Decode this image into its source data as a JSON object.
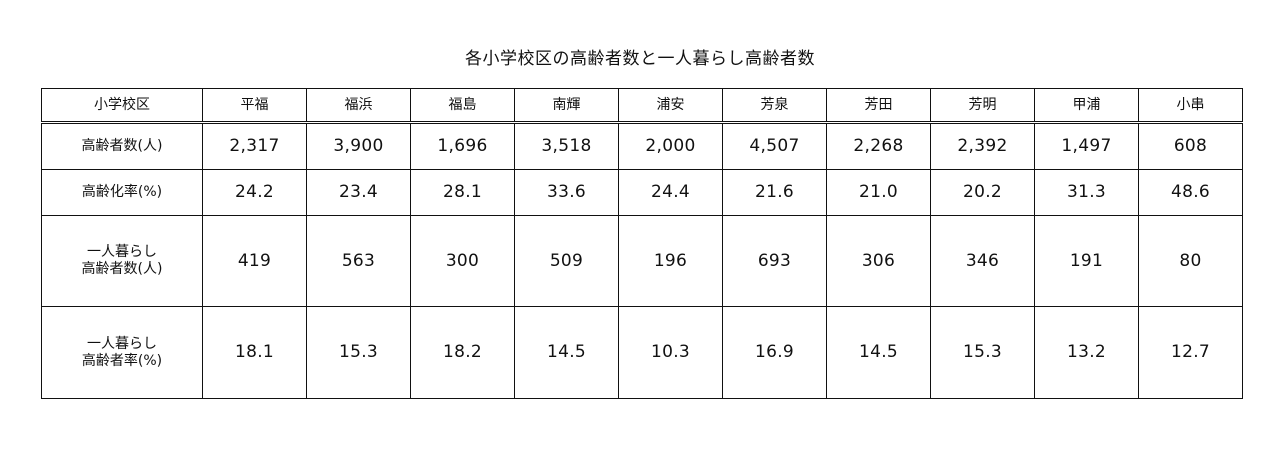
{
  "chart_data": {
    "type": "table",
    "title": "各小学校区の高齢者数と一人暮らし高齢者数",
    "corner_header": "小学校区",
    "columns": [
      "平福",
      "福浜",
      "福島",
      "南輝",
      "浦安",
      "芳泉",
      "芳田",
      "芳明",
      "甲浦",
      "小串"
    ],
    "rows": [
      {
        "label_lines": [
          "高齢者数(人)"
        ],
        "values": [
          "2,317",
          "3,900",
          "1,696",
          "3,518",
          "2,000",
          "4,507",
          "2,268",
          "2,392",
          "1,497",
          "608"
        ]
      },
      {
        "label_lines": [
          "高齢化率(%)"
        ],
        "values": [
          "24.2",
          "23.4",
          "28.1",
          "33.6",
          "24.4",
          "21.6",
          "21.0",
          "20.2",
          "31.3",
          "48.6"
        ]
      },
      {
        "label_lines": [
          "一人暮らし",
          "高齢者数(人)"
        ],
        "values": [
          "419",
          "563",
          "300",
          "509",
          "196",
          "693",
          "306",
          "346",
          "191",
          "80"
        ]
      },
      {
        "label_lines": [
          "一人暮らし",
          "高齢者率(%)"
        ],
        "values": [
          "18.1",
          "15.3",
          "18.2",
          "14.5",
          "10.3",
          "16.9",
          "14.5",
          "15.3",
          "13.2",
          "12.7"
        ]
      }
    ]
  }
}
